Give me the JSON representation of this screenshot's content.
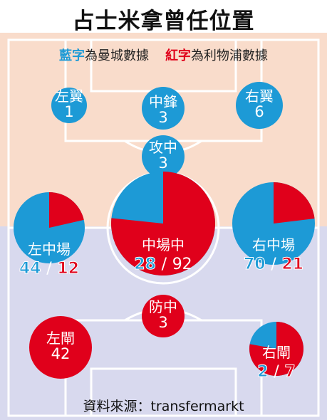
{
  "title": "占士米拿曾任位置",
  "legend": {
    "blue_word": "藍字",
    "blue_rest": "為曼城數據",
    "red_word": "紅字",
    "red_rest": "為利物浦數據"
  },
  "source": "資料來源：transfermarkt",
  "colors": {
    "city": "#1d9ad6",
    "liverpool": "#e0001b",
    "top_zone": "#f9dccb",
    "bottom_zone": "#d8d9ee"
  },
  "positions": {
    "left_wing": {
      "label": "左翼",
      "value": "1"
    },
    "center_forward": {
      "label": "中鋒",
      "value": "3"
    },
    "right_wing": {
      "label": "右翼",
      "value": "6"
    },
    "attacking_mid": {
      "label": "攻中",
      "value": "3"
    },
    "left_mid": {
      "label": "左中場",
      "city": "44",
      "sep": "/",
      "liverpool": "12"
    },
    "center_mid": {
      "label": "中場中",
      "city": "28",
      "sep": "/",
      "liverpool": "92"
    },
    "right_mid": {
      "label": "右中場",
      "city": "70",
      "sep": "/",
      "liverpool": "21"
    },
    "defensive_mid": {
      "label": "防中",
      "value": "3"
    },
    "left_back": {
      "label": "左閘",
      "value": "42"
    },
    "right_back": {
      "label": "右閘",
      "city": "2",
      "sep": "/",
      "liverpool": "7"
    }
  }
}
